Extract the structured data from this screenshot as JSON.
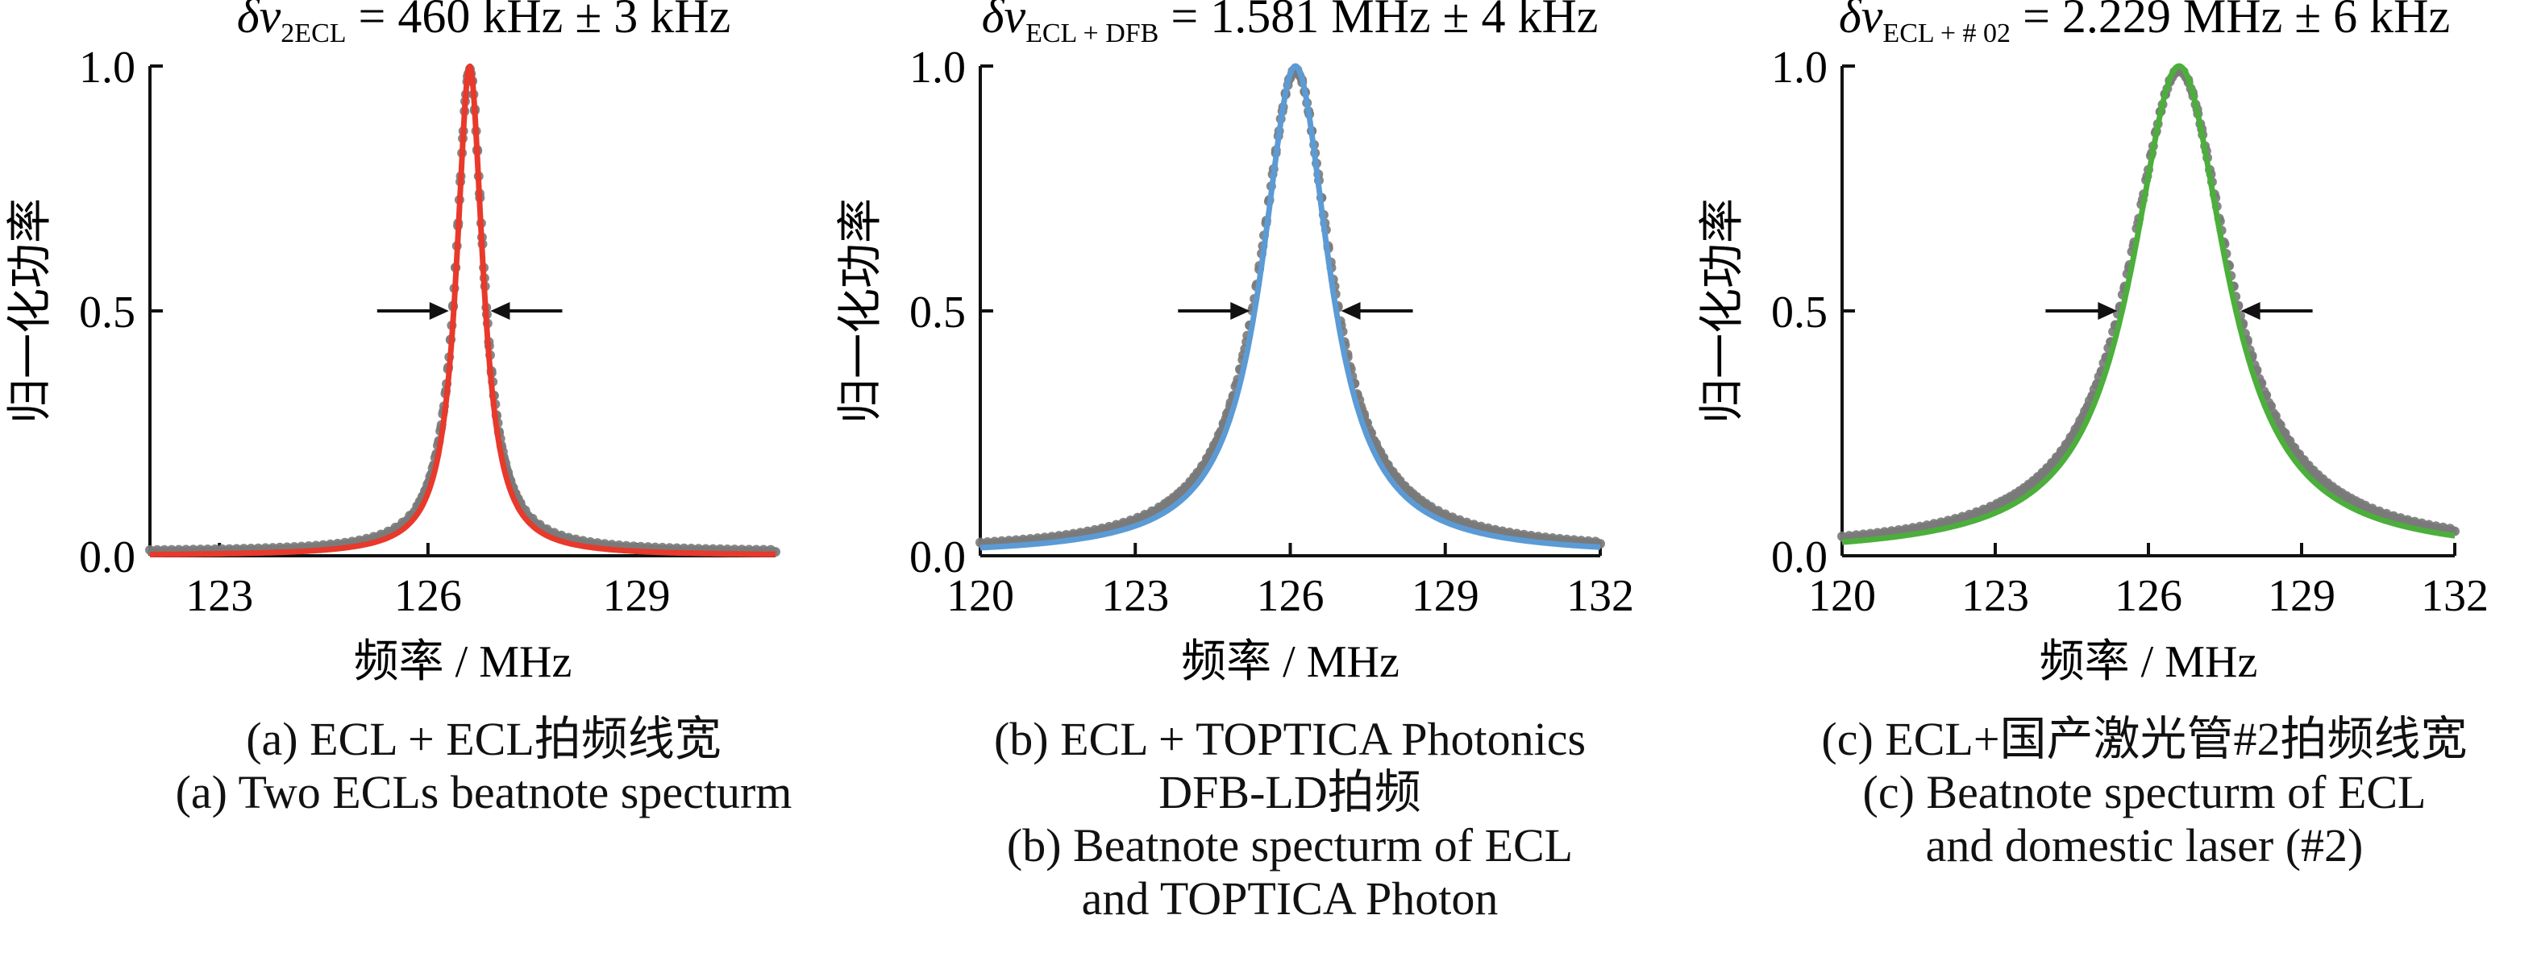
{
  "chart_data": [
    {
      "type": "line",
      "panel": "a",
      "title": "δv2ECL = 460 kHz ± 3 kHz",
      "title_symbol": "δv",
      "title_subscript": "2ECL",
      "title_rest": " = 460 kHz ± 3 kHz",
      "xlabel": "频率 / MHz",
      "ylabel": "归一化功率",
      "xlim": [
        122,
        131
      ],
      "ylim": [
        0,
        1.0
      ],
      "xticks": [
        123,
        126,
        129
      ],
      "yticks": [
        0.0,
        0.5,
        1.0
      ],
      "ytick_labels": [
        "0.0",
        "0.5",
        "1.0"
      ],
      "center": 126.6,
      "fwhm": 0.46,
      "grid": false,
      "series": [
        {
          "role": "data",
          "color": "#7a7a7a",
          "style": "dots"
        },
        {
          "role": "fit",
          "color": "#e8392b",
          "style": "line"
        }
      ],
      "annotation": "FWHM arrows at 0.5",
      "caption": [
        "(a)  ECL + ECL拍频线宽",
        "(a) Two ECLs beatnote specturm"
      ]
    },
    {
      "type": "line",
      "panel": "b",
      "title": "δvECL + DFB = 1.581 MHz ± 4 kHz",
      "title_symbol": "δv",
      "title_subscript": "ECL + DFB",
      "title_rest": " = 1.581 MHz ± 4 kHz",
      "xlabel": "频率 / MHz",
      "ylabel": "归一化功率",
      "xlim": [
        120,
        132
      ],
      "ylim": [
        0,
        1.0
      ],
      "xticks": [
        120,
        123,
        126,
        129,
        132
      ],
      "yticks": [
        0.0,
        0.5,
        1.0
      ],
      "ytick_labels": [
        "0.0",
        "0.5",
        "1.0"
      ],
      "center": 126.1,
      "fwhm": 1.58,
      "grid": false,
      "series": [
        {
          "role": "data",
          "color": "#7a7a7a",
          "style": "dots"
        },
        {
          "role": "fit",
          "color": "#5b9bd5",
          "style": "line"
        }
      ],
      "annotation": "FWHM arrows at 0.5",
      "caption": [
        "(b) ECL + TOPTICA Photonics",
        "DFB-LD拍频",
        "(b) Beatnote specturm of ECL",
        "and TOPTICA Photon"
      ]
    },
    {
      "type": "line",
      "panel": "c",
      "title": "δvECL + #02 = 2.229 MHz ± 6 kHz",
      "title_symbol": "δv",
      "title_subscript": "ECL + # 02",
      "title_rest": " = 2.229 MHz ± 6 kHz",
      "xlabel": "频率 / MHz",
      "ylabel": "归一化功率",
      "xlim": [
        120,
        132
      ],
      "ylim": [
        0,
        1.0
      ],
      "xticks": [
        120,
        123,
        126,
        129,
        132
      ],
      "yticks": [
        0.0,
        0.5,
        1.0
      ],
      "ytick_labels": [
        "0.0",
        "0.5",
        "1.0"
      ],
      "center": 126.6,
      "fwhm": 2.23,
      "grid": false,
      "series": [
        {
          "role": "data",
          "color": "#7a7a7a",
          "style": "dots"
        },
        {
          "role": "fit",
          "color": "#4caf3c",
          "style": "line"
        }
      ],
      "annotation": "FWHM arrows at 0.5",
      "caption": [
        "(c) ECL+国产激光管#2拍频线宽",
        "(c) Beatnote specturm of ECL",
        "and domestic laser (#2)"
      ]
    }
  ]
}
